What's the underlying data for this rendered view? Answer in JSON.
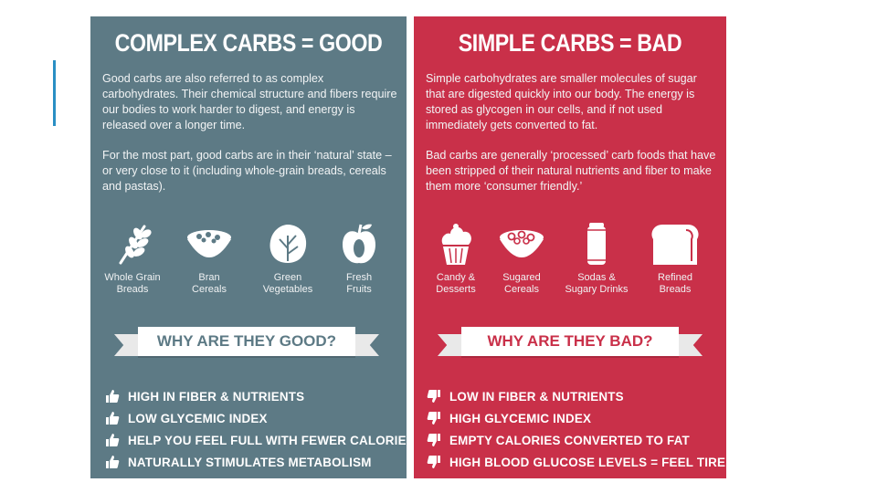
{
  "good": {
    "title": "COMPLEX CARBS = GOOD",
    "paragraph1": "Good carbs are also referred to as complex carbohydrates. Their chemical structure and fibers require our bodies to work harder to digest, and energy is released over a longer time.",
    "paragraph2": "For the most part, good carbs are in their ‘natural’ state – or very close to it (including whole-grain breads, cereals and pastas).",
    "icons": [
      {
        "line1": "Whole Grain",
        "line2": "Breads",
        "icon": "wheat-icon"
      },
      {
        "line1": "Bran",
        "line2": "Cereals",
        "icon": "cereal-bowl-icon"
      },
      {
        "line1": "Green",
        "line2": "Vegetables",
        "icon": "lettuce-icon"
      },
      {
        "line1": "Fresh",
        "line2": "Fruits",
        "icon": "apple-icon"
      }
    ],
    "banner": "WHY ARE THEY GOOD?",
    "reasons": [
      "HIGH IN FIBER & NUTRIENTS",
      "LOW GLYCEMIC INDEX",
      "HELP YOU FEEL FULL WITH FEWER CALORIES",
      "NATURALLY STIMULATES METABOLISM"
    ],
    "color": "#5d7a85"
  },
  "bad": {
    "title": "SIMPLE CARBS = BAD",
    "paragraph1": "Simple carbohydrates are smaller molecules of sugar that are digested quickly into our body. The energy is stored as glycogen in our cells, and if not used immediately gets converted to fat.",
    "paragraph2": "Bad carbs are generally ‘processed’ carb foods that have been stripped of their natural nutrients and fiber to make them more ‘consumer friendly.’",
    "icons": [
      {
        "line1": "Candy &",
        "line2": "Desserts",
        "icon": "cupcake-icon"
      },
      {
        "line1": "Sugared",
        "line2": "Cereals",
        "icon": "sugared-cereal-icon"
      },
      {
        "line1": "Sodas &",
        "line2": "Sugary Drinks",
        "icon": "soda-can-icon"
      },
      {
        "line1": "Refined",
        "line2": "Breads",
        "icon": "bread-loaf-icon"
      }
    ],
    "banner": "WHY ARE THEY BAD?",
    "reasons": [
      "LOW IN FIBER & NUTRIENTS",
      "HIGH GLYCEMIC INDEX",
      "EMPTY CALORIES CONVERTED TO FAT",
      "HIGH BLOOD GLUCOSE LEVELS = FEEL TIRED"
    ],
    "color": "#c93049"
  },
  "accent_color": "#2a8fc4"
}
